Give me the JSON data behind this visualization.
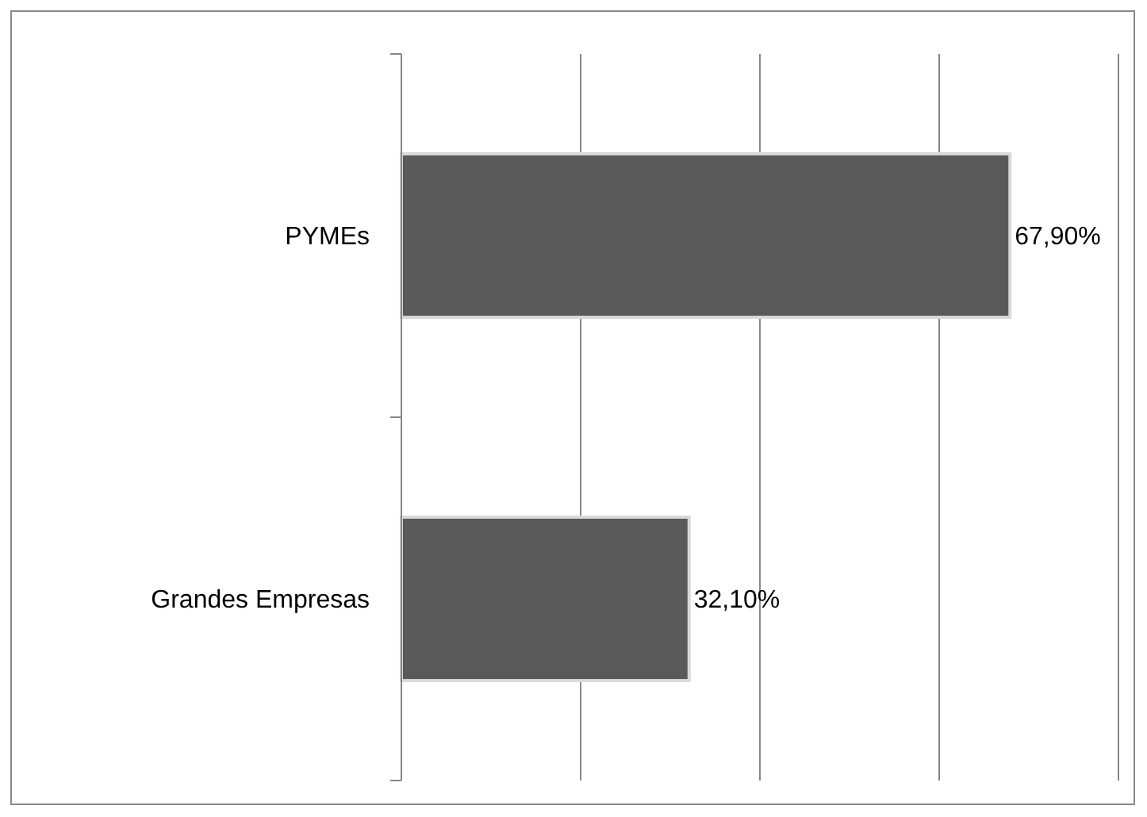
{
  "chart_data": {
    "type": "bar",
    "orientation": "horizontal",
    "categories": [
      "PYMEs",
      "Grandes Empresas"
    ],
    "values": [
      67.9,
      32.1
    ],
    "value_labels": [
      "67,90%",
      "32,10%"
    ],
    "color": "#595959",
    "xlim": [
      0,
      80
    ],
    "xticks": [
      {
        "value": 0,
        "label": null
      },
      {
        "value": 20,
        "label": null
      },
      {
        "value": 40,
        "label": null
      },
      {
        "value": 60,
        "label": null
      },
      {
        "value": 80,
        "label": null
      }
    ],
    "tick_labels": "y",
    "grid": "x"
  }
}
